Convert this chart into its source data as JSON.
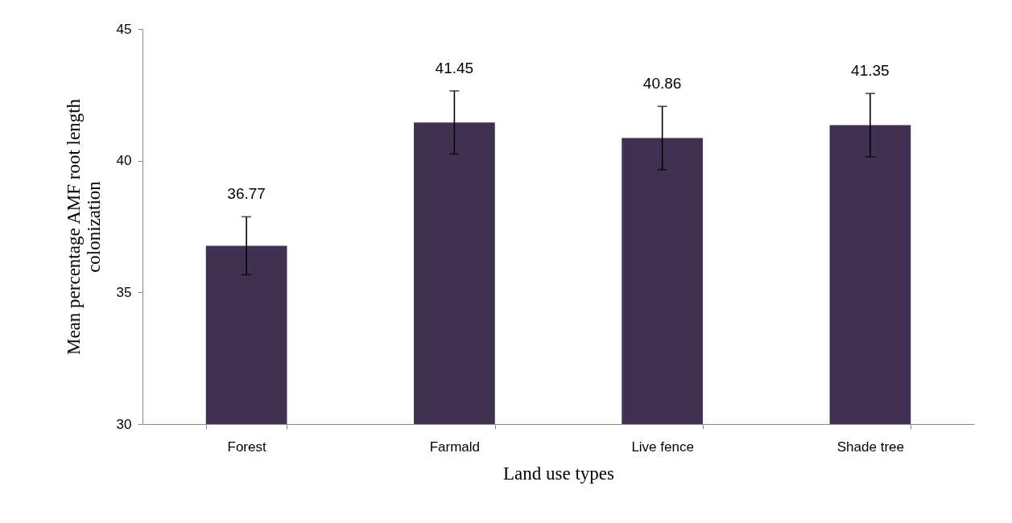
{
  "chart_data": {
    "type": "bar",
    "xlabel": "Land use types",
    "ylabel": "Mean percentage AMF root length\ncolonization",
    "categories": [
      "Forest",
      "Farmald",
      "Live fence",
      "Shade tree"
    ],
    "values": [
      36.77,
      41.45,
      40.86,
      41.35
    ],
    "errors": [
      1.1,
      1.2,
      1.2,
      1.2
    ],
    "color": "#403152",
    "data_labels": true,
    "ylim": [
      30,
      45
    ],
    "yticks": [
      30,
      35,
      40,
      45
    ]
  }
}
